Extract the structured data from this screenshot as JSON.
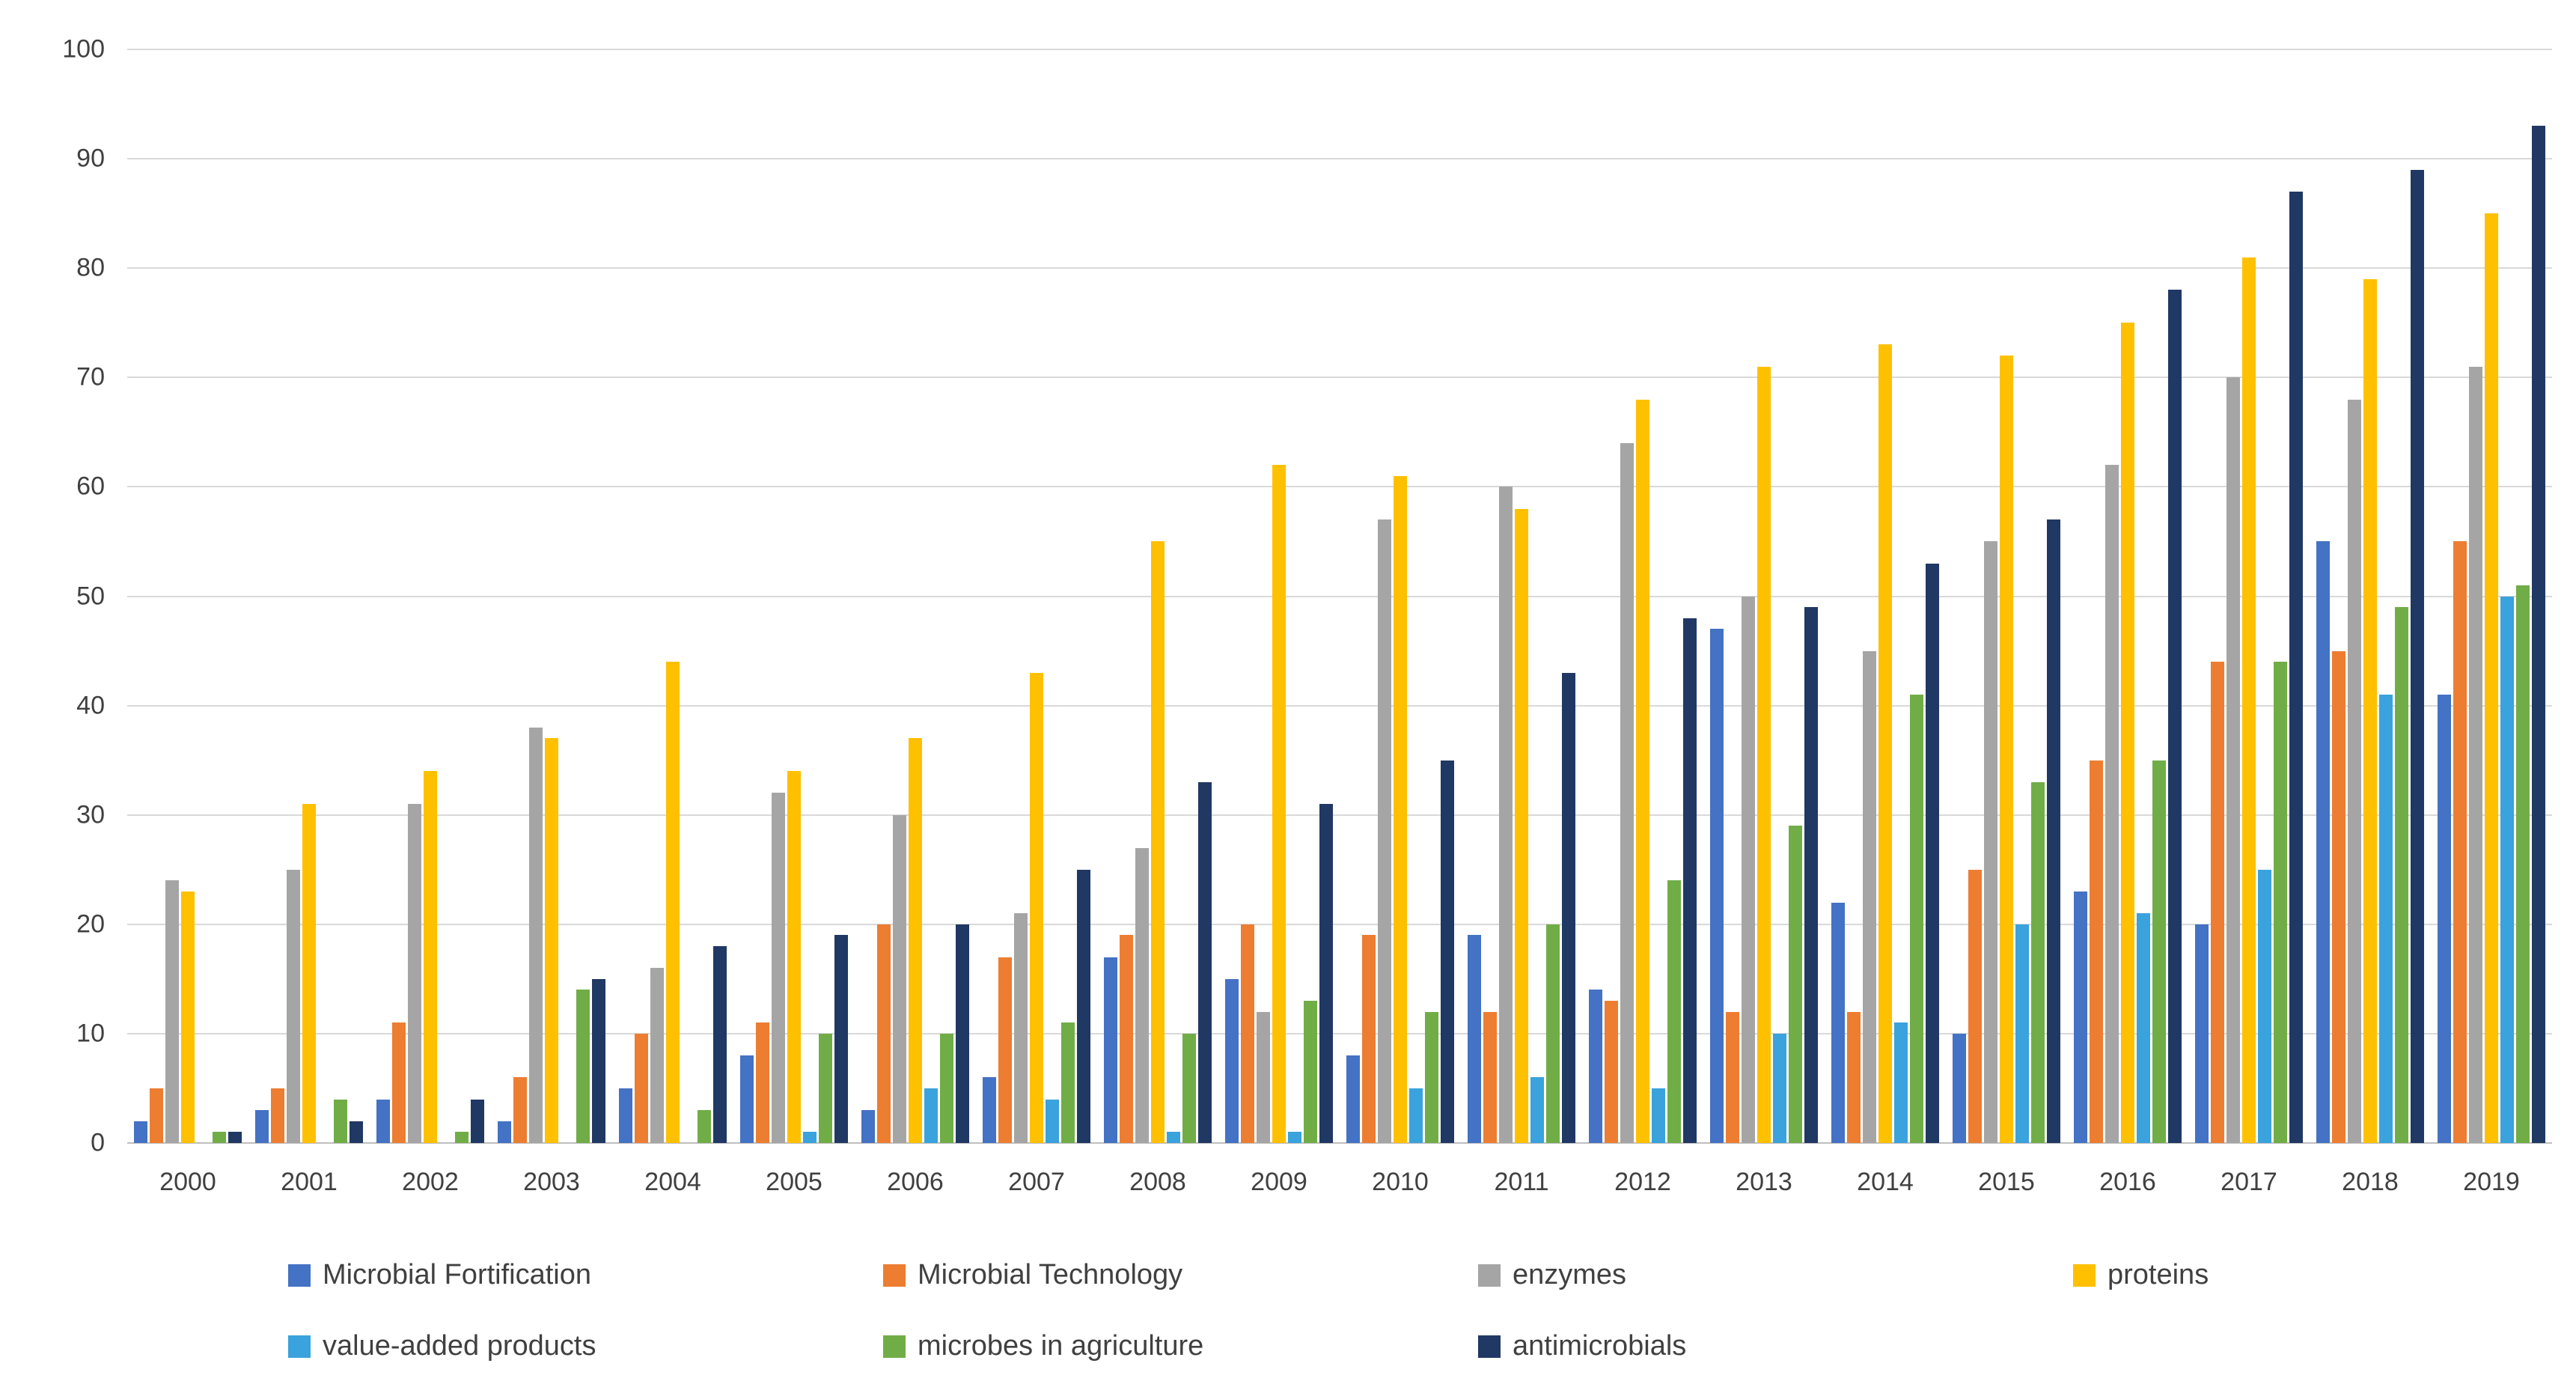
{
  "chart_data": {
    "type": "bar",
    "title": "",
    "xlabel": "",
    "ylabel": "",
    "ylim": [
      0,
      100
    ],
    "ytick_interval": 10,
    "yticks": [
      0,
      10,
      20,
      30,
      40,
      50,
      60,
      70,
      80,
      90,
      100
    ],
    "grid": true,
    "legend_position": "bottom",
    "categories": [
      "2000",
      "2001",
      "2002",
      "2003",
      "2004",
      "2005",
      "2006",
      "2007",
      "2008",
      "2009",
      "2010",
      "2011",
      "2012",
      "2013",
      "2014",
      "2015",
      "2016",
      "2017",
      "2018",
      "2019"
    ],
    "series": [
      {
        "name": "Microbial Fortification",
        "color": "#4472C4",
        "values": [
          2,
          3,
          4,
          2,
          5,
          8,
          3,
          6,
          17,
          15,
          8,
          19,
          14,
          47,
          22,
          10,
          23,
          20,
          55,
          41
        ]
      },
      {
        "name": "Microbial Technology",
        "color": "#ED7D31",
        "values": [
          5,
          5,
          11,
          6,
          10,
          11,
          20,
          17,
          19,
          20,
          19,
          12,
          13,
          12,
          12,
          25,
          35,
          44,
          45,
          55
        ]
      },
      {
        "name": "enzymes",
        "color": "#A5A5A5",
        "values": [
          24,
          25,
          31,
          38,
          16,
          32,
          30,
          21,
          27,
          12,
          57,
          60,
          64,
          50,
          45,
          55,
          62,
          70,
          68,
          71
        ]
      },
      {
        "name": "proteins",
        "color": "#FFC000",
        "values": [
          23,
          31,
          34,
          37,
          44,
          34,
          37,
          43,
          55,
          62,
          61,
          58,
          68,
          71,
          73,
          72,
          75,
          81,
          79,
          85
        ]
      },
      {
        "name": "value-added products",
        "color": "#3AA2DC",
        "values": [
          0,
          0,
          0,
          0,
          0,
          1,
          5,
          4,
          1,
          1,
          5,
          6,
          5,
          10,
          11,
          20,
          21,
          25,
          41,
          50
        ]
      },
      {
        "name": "microbes in agriculture",
        "color": "#70AD47",
        "values": [
          1,
          4,
          1,
          14,
          3,
          10,
          10,
          11,
          10,
          13,
          12,
          20,
          24,
          29,
          41,
          33,
          35,
          44,
          49,
          51
        ]
      },
      {
        "name": "antimicrobials",
        "color": "#203864",
        "values": [
          1,
          2,
          4,
          15,
          18,
          19,
          20,
          25,
          33,
          31,
          35,
          43,
          48,
          49,
          53,
          57,
          78,
          87,
          89,
          93
        ]
      }
    ]
  }
}
